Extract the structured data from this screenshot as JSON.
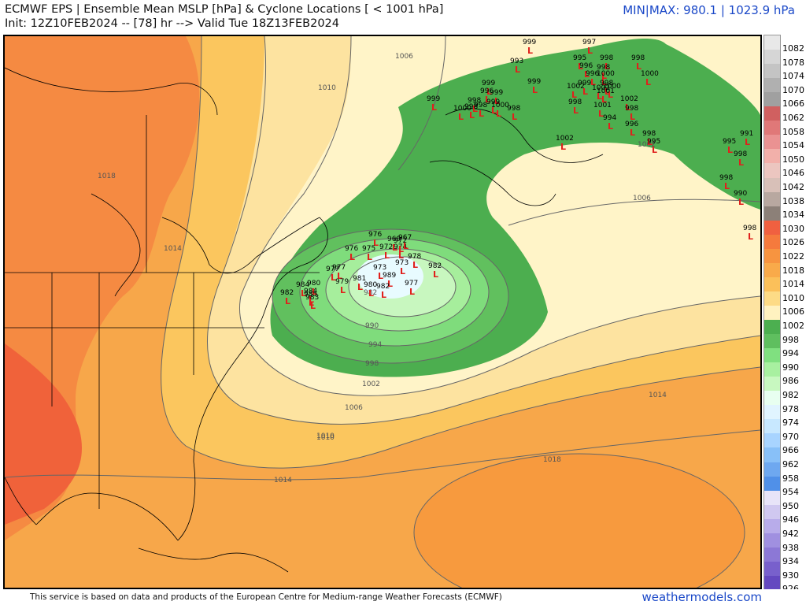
{
  "header": {
    "title": "ECMWF EPS | Ensemble Mean MSLP [hPa] & Cyclone Locations [ < 1001 hPa]",
    "subtitle": "Init: 12Z10FEB2024 -- [78] hr --> Valid Tue 18Z13FEB2024",
    "minmax": "MIN|MAX: 980.1 | 1023.9 hPa"
  },
  "footer": {
    "credit": "This service is based on data and products of the European Centre for Medium-range Weather Forecasts (ECMWF)",
    "brand": "weathermodels.com"
  },
  "colorbar": {
    "labels": [
      "1082",
      "1078",
      "1074",
      "1070",
      "1066",
      "1062",
      "1058",
      "1054",
      "1050",
      "1046",
      "1042",
      "1038",
      "1034",
      "1030",
      "1026",
      "1022",
      "1018",
      "1014",
      "1010",
      "1006",
      "1002",
      "998",
      "994",
      "990",
      "986",
      "982",
      "978",
      "974",
      "970",
      "966",
      "962",
      "958",
      "954",
      "950",
      "946",
      "942",
      "938",
      "934",
      "930",
      "926"
    ],
    "colors": [
      "#e8e8e8",
      "#d6d6d6",
      "#c4c4c4",
      "#b0b0b0",
      "#a0a0a0",
      "#d06060",
      "#e07878",
      "#ea9292",
      "#f2b0aa",
      "#ecc6c0",
      "#d8c0b8",
      "#b8a8a0",
      "#8c8078",
      "#f06040",
      "#f57a3d",
      "#f79440",
      "#f9aa4a",
      "#fbc05a",
      "#fddb86",
      "#fff2c0",
      "#4caf50",
      "#5fbf5f",
      "#80e080",
      "#a8f0a0",
      "#c8f8c0",
      "#e8fff0",
      "#e0f4ff",
      "#c8e8ff",
      "#a8d4ff",
      "#88c0f8",
      "#6ea8f0",
      "#5090e8",
      "#e8e4f8",
      "#d0c8f0",
      "#b8acea",
      "#a090e0",
      "#8c78d6",
      "#7860cc",
      "#6448c0"
    ]
  },
  "isobars": {
    "labels": [
      "1006",
      "1010",
      "1018",
      "1014",
      "1010",
      "998",
      "994",
      "990",
      "982",
      "1002",
      "1006",
      "1010",
      "1014",
      "1018",
      "1014",
      "1006",
      "1002",
      "1010"
    ]
  },
  "cyclones": {
    "labels": [
      "999",
      "997",
      "995",
      "998",
      "998",
      "996",
      "998",
      "993",
      "996",
      "1000",
      "1000",
      "999",
      "999",
      "998",
      "1002",
      "1000",
      "1001",
      "999",
      "1002",
      "999",
      "996",
      "998",
      "999",
      "1000",
      "998",
      "998",
      "1000",
      "998",
      "1001",
      "1002",
      "998",
      "999",
      "998",
      "994",
      "1002",
      "996",
      "998",
      "991",
      "995",
      "998",
      "995",
      "998",
      "990",
      "998",
      "976",
      "972",
      "974",
      "967",
      "969",
      "972",
      "978",
      "976",
      "975",
      "973",
      "977",
      "973",
      "982",
      "981",
      "989",
      "984",
      "977",
      "979",
      "980",
      "980",
      "982",
      "977",
      "982",
      "984",
      "985",
      "983"
    ]
  }
}
